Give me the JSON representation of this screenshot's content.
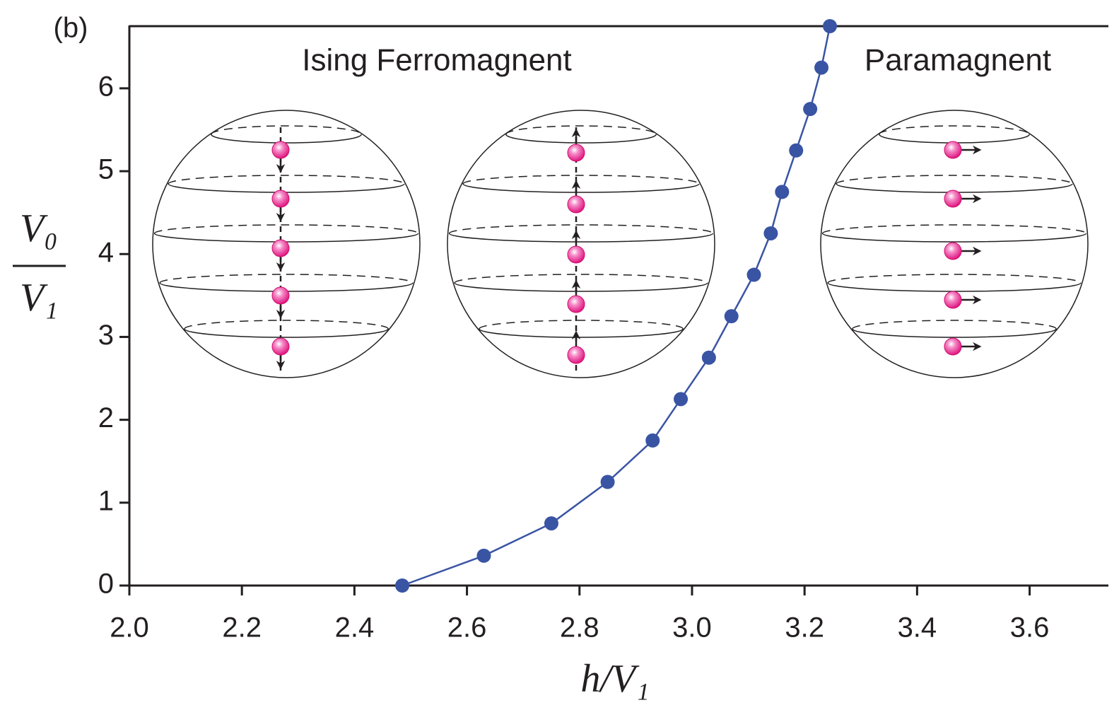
{
  "chart_data": {
    "type": "line",
    "panel_label": "(b)",
    "x_label": "h/V₁",
    "y_label": {
      "numerator": "V₀",
      "denominator": "V₁"
    },
    "annotations": [
      "Ising Ferromagnent",
      "Paramagnent"
    ],
    "x": [
      2.485,
      2.63,
      2.75,
      2.85,
      2.93,
      2.98,
      3.03,
      3.07,
      3.11,
      3.14,
      3.16,
      3.185,
      3.21,
      3.23,
      3.245
    ],
    "series": [
      {
        "color": "#3a54a4",
        "values": [
          0,
          0.36,
          0.75,
          1.25,
          1.75,
          2.25,
          2.75,
          3.25,
          3.75,
          4.25,
          4.75,
          5.25,
          5.75,
          6.25,
          6.75
        ]
      }
    ],
    "xlim": [
      2.0,
      3.74
    ],
    "ylim": [
      0,
      6.75
    ],
    "xticks": [
      {
        "value": 2.0,
        "label": "2.0"
      },
      2.2,
      2.4,
      2.6,
      2.8,
      {
        "value": 3.0,
        "label": "3.0"
      },
      3.2,
      3.4,
      3.6
    ],
    "yticks": [
      0,
      1,
      2,
      3,
      4,
      5,
      6
    ],
    "grid": false
  }
}
